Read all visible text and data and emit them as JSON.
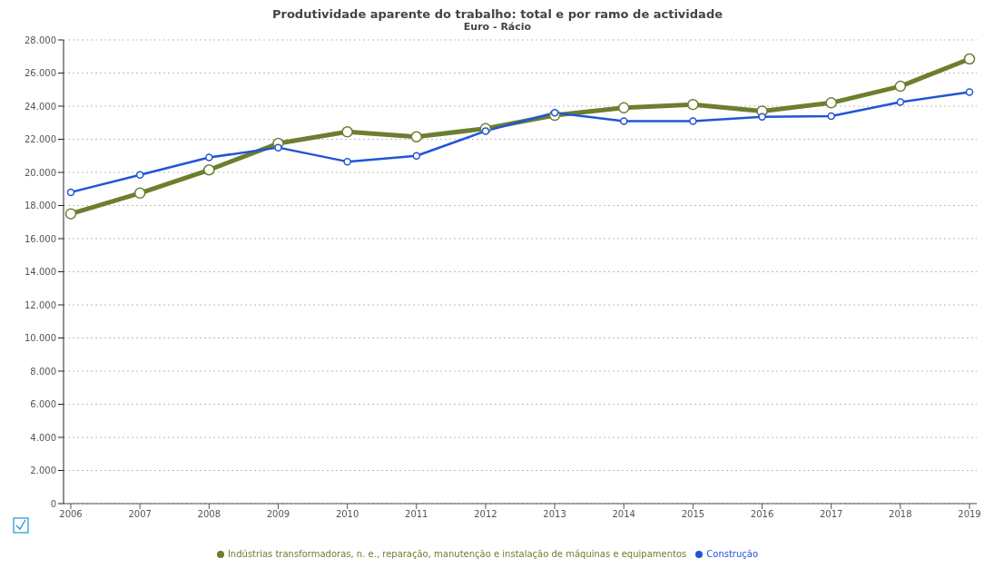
{
  "chart_data": {
    "type": "line",
    "title": "Produtividade aparente do trabalho: total e por ramo de actividade",
    "subtitle": "Euro - Rácio",
    "categories": [
      "2006",
      "2007",
      "2008",
      "2009",
      "2010",
      "2011",
      "2012",
      "2013",
      "2014",
      "2015",
      "2016",
      "2017",
      "2018",
      "2019"
    ],
    "series": [
      {
        "name": "Indústrias transformadoras, n. e., reparação, manutenção e instalação de máquinas e equipamentos",
        "color": "#6b7f2e",
        "values": [
          17500,
          18750,
          20150,
          21750,
          22450,
          22150,
          22650,
          23450,
          23900,
          24100,
          23700,
          24200,
          25200,
          26850
        ]
      },
      {
        "name": "Construção",
        "color": "#2155d6",
        "values": [
          18800,
          19850,
          20900,
          21500,
          20650,
          21000,
          22500,
          23600,
          23100,
          23100,
          23350,
          23400,
          24250,
          24850
        ]
      }
    ],
    "ylim": [
      0,
      28000
    ],
    "yticks": [
      {
        "value": 0,
        "label": "0"
      },
      {
        "value": 2000,
        "label": "2.000"
      },
      {
        "value": 4000,
        "label": "4.000"
      },
      {
        "value": 6000,
        "label": "6.000"
      },
      {
        "value": 8000,
        "label": "8.000"
      },
      {
        "value": 10000,
        "label": "10.000"
      },
      {
        "value": 12000,
        "label": "12.000"
      },
      {
        "value": 14000,
        "label": "14.000"
      },
      {
        "value": 16000,
        "label": "16.000"
      },
      {
        "value": 18000,
        "label": "18.000"
      },
      {
        "value": 20000,
        "label": "20.000"
      },
      {
        "value": 22000,
        "label": "22.000"
      },
      {
        "value": 24000,
        "label": "24.000"
      },
      {
        "value": 26000,
        "label": "26.000"
      },
      {
        "value": 28000,
        "label": "28.000"
      }
    ],
    "grid": "y",
    "legend": "bottom",
    "marker": "circle",
    "line_style": "solid"
  }
}
